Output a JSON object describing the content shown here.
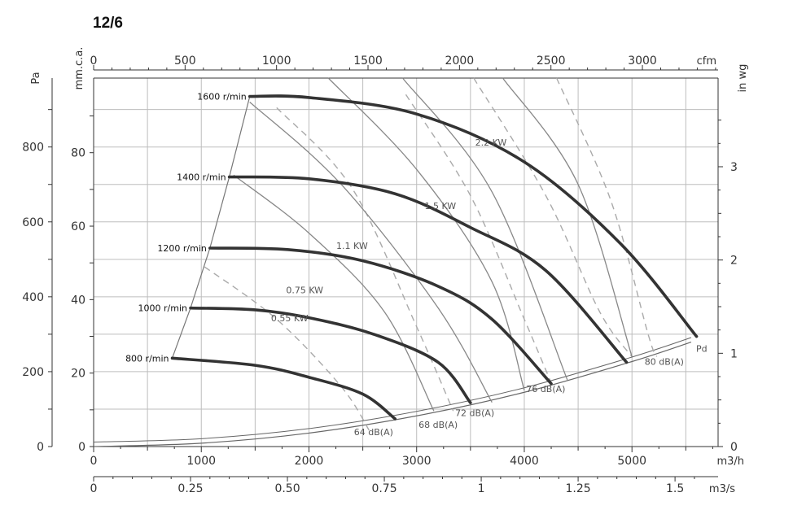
{
  "title": "12/6",
  "chart_data": {
    "type": "line",
    "title": "12/6",
    "x_axes": {
      "m3h": {
        "label": "m3/h",
        "ticks": [
          "0",
          "1000",
          "2000",
          "3000",
          "4000",
          "5000"
        ],
        "range": [
          0,
          5800
        ]
      },
      "m3s": {
        "label": "m3/s",
        "ticks": [
          "0",
          "0.25",
          "0.50",
          "0.75",
          "1",
          "1.25",
          "1.5"
        ],
        "range": [
          0,
          1.611
        ]
      },
      "cfm": {
        "label": "cfm",
        "ticks": [
          "0",
          "500",
          "1000",
          "1500",
          "2000",
          "2500",
          "3000"
        ],
        "range": [
          0,
          3414
        ]
      }
    },
    "y_axes": {
      "pa": {
        "label": "Pa",
        "ticks": [
          "0",
          "200",
          "400",
          "600",
          "800"
        ],
        "range": [
          0,
          984
        ]
      },
      "mmca": {
        "label": "mm.c.a.",
        "ticks": [
          "0",
          "20",
          "40",
          "60",
          "80"
        ],
        "range": [
          0,
          100
        ]
      },
      "inwg": {
        "label": "in wg",
        "ticks": [
          "0",
          "1",
          "2",
          "3"
        ],
        "range": [
          0,
          3.95
        ]
      }
    },
    "grid": true,
    "speed_series": [
      {
        "name": "800 r/min",
        "points": [
          [
            730,
            236
          ],
          [
            1500,
            217
          ],
          [
            2000,
            185
          ],
          [
            2500,
            140
          ],
          [
            2800,
            74
          ]
        ]
      },
      {
        "name": "1000 r/min",
        "points": [
          [
            900,
            370
          ],
          [
            1500,
            365
          ],
          [
            2000,
            344
          ],
          [
            2600,
            300
          ],
          [
            3200,
            225
          ],
          [
            3500,
            117
          ]
        ]
      },
      {
        "name": "1200 r/min",
        "points": [
          [
            1080,
            530
          ],
          [
            1800,
            526
          ],
          [
            2500,
            496
          ],
          [
            3200,
            428
          ],
          [
            3700,
            340
          ],
          [
            4250,
            168
          ]
        ]
      },
      {
        "name": "1400 r/min",
        "points": [
          [
            1260,
            720
          ],
          [
            2000,
            715
          ],
          [
            2800,
            675
          ],
          [
            3500,
            585
          ],
          [
            4200,
            470
          ],
          [
            4950,
            225
          ]
        ]
      },
      {
        "name": "1600 r/min",
        "points": [
          [
            1450,
            935
          ],
          [
            2000,
            932
          ],
          [
            3000,
            888
          ],
          [
            4000,
            760
          ],
          [
            4900,
            540
          ],
          [
            5600,
            294
          ]
        ]
      }
    ],
    "power_series": [
      {
        "name": "0.55 KW",
        "points": [
          [
            1300,
            725
          ],
          [
            2000,
            570
          ],
          [
            2700,
            360
          ],
          [
            3160,
            95
          ]
        ]
      },
      {
        "name": "0.75 KW",
        "points": [
          [
            1450,
            920
          ],
          [
            2300,
            700
          ],
          [
            3200,
            370
          ],
          [
            3700,
            118
          ]
        ]
      },
      {
        "name": "1.1 KW",
        "points": [
          [
            2180,
            984
          ],
          [
            3000,
            740
          ],
          [
            3700,
            440
          ],
          [
            4000,
            150
          ]
        ]
      },
      {
        "name": "1.5 KW",
        "points": [
          [
            2870,
            984
          ],
          [
            3700,
            680
          ],
          [
            4400,
            178
          ]
        ]
      },
      {
        "name": "2.2 KW",
        "points": [
          [
            3800,
            984
          ],
          [
            4500,
            700
          ],
          [
            5000,
            240
          ]
        ]
      }
    ],
    "noise_series": [
      {
        "name": "64 dB(A)",
        "points": [
          [
            1030,
            480
          ],
          [
            1700,
            340
          ],
          [
            2300,
            160
          ],
          [
            2560,
            43
          ]
        ]
      },
      {
        "name": "68 dB(A)",
        "points": [
          [
            1700,
            905
          ],
          [
            2400,
            690
          ],
          [
            3000,
            320
          ],
          [
            3340,
            95
          ]
        ]
      },
      {
        "name": "72 dB(A)",
        "points": [
          [
            2900,
            940
          ],
          [
            3500,
            670
          ],
          [
            4000,
            340
          ],
          [
            4250,
            170
          ]
        ]
      },
      {
        "name": "76 dB(A)",
        "points": [
          [
            3530,
            984
          ],
          [
            4200,
            670
          ],
          [
            4700,
            360
          ],
          [
            5000,
            240
          ]
        ]
      },
      {
        "name": "80 dB(A)",
        "points": [
          [
            4300,
            984
          ],
          [
            4800,
            660
          ],
          [
            5150,
            300
          ],
          [
            5230,
            240
          ]
        ]
      }
    ],
    "pd_series": {
      "name": "Pd",
      "points": [
        [
          0,
          0
        ],
        [
          1000,
          9
        ],
        [
          2000,
          36
        ],
        [
          3000,
          82
        ],
        [
          4000,
          145
        ],
        [
          5000,
          227
        ],
        [
          5550,
          279
        ]
      ]
    },
    "speed_boundary": {
      "points": [
        [
          730,
          236
        ],
        [
          900,
          370
        ],
        [
          1080,
          530
        ],
        [
          1260,
          720
        ],
        [
          1450,
          935
        ]
      ]
    }
  },
  "labels": {
    "speeds": [
      "800  r/min",
      "1000  r/min",
      "1200  r/min",
      "1400  r/min",
      "1600  r/min"
    ],
    "powers": [
      "0.55  KW",
      "0.75  KW",
      "1.1  KW",
      "1.5  KW",
      "2.2  KW"
    ],
    "noises": [
      "64  dB(A)",
      "68  dB(A)",
      "72  dB(A)",
      "76  dB(A)",
      "80  dB(A)"
    ],
    "pd": "Pd"
  }
}
